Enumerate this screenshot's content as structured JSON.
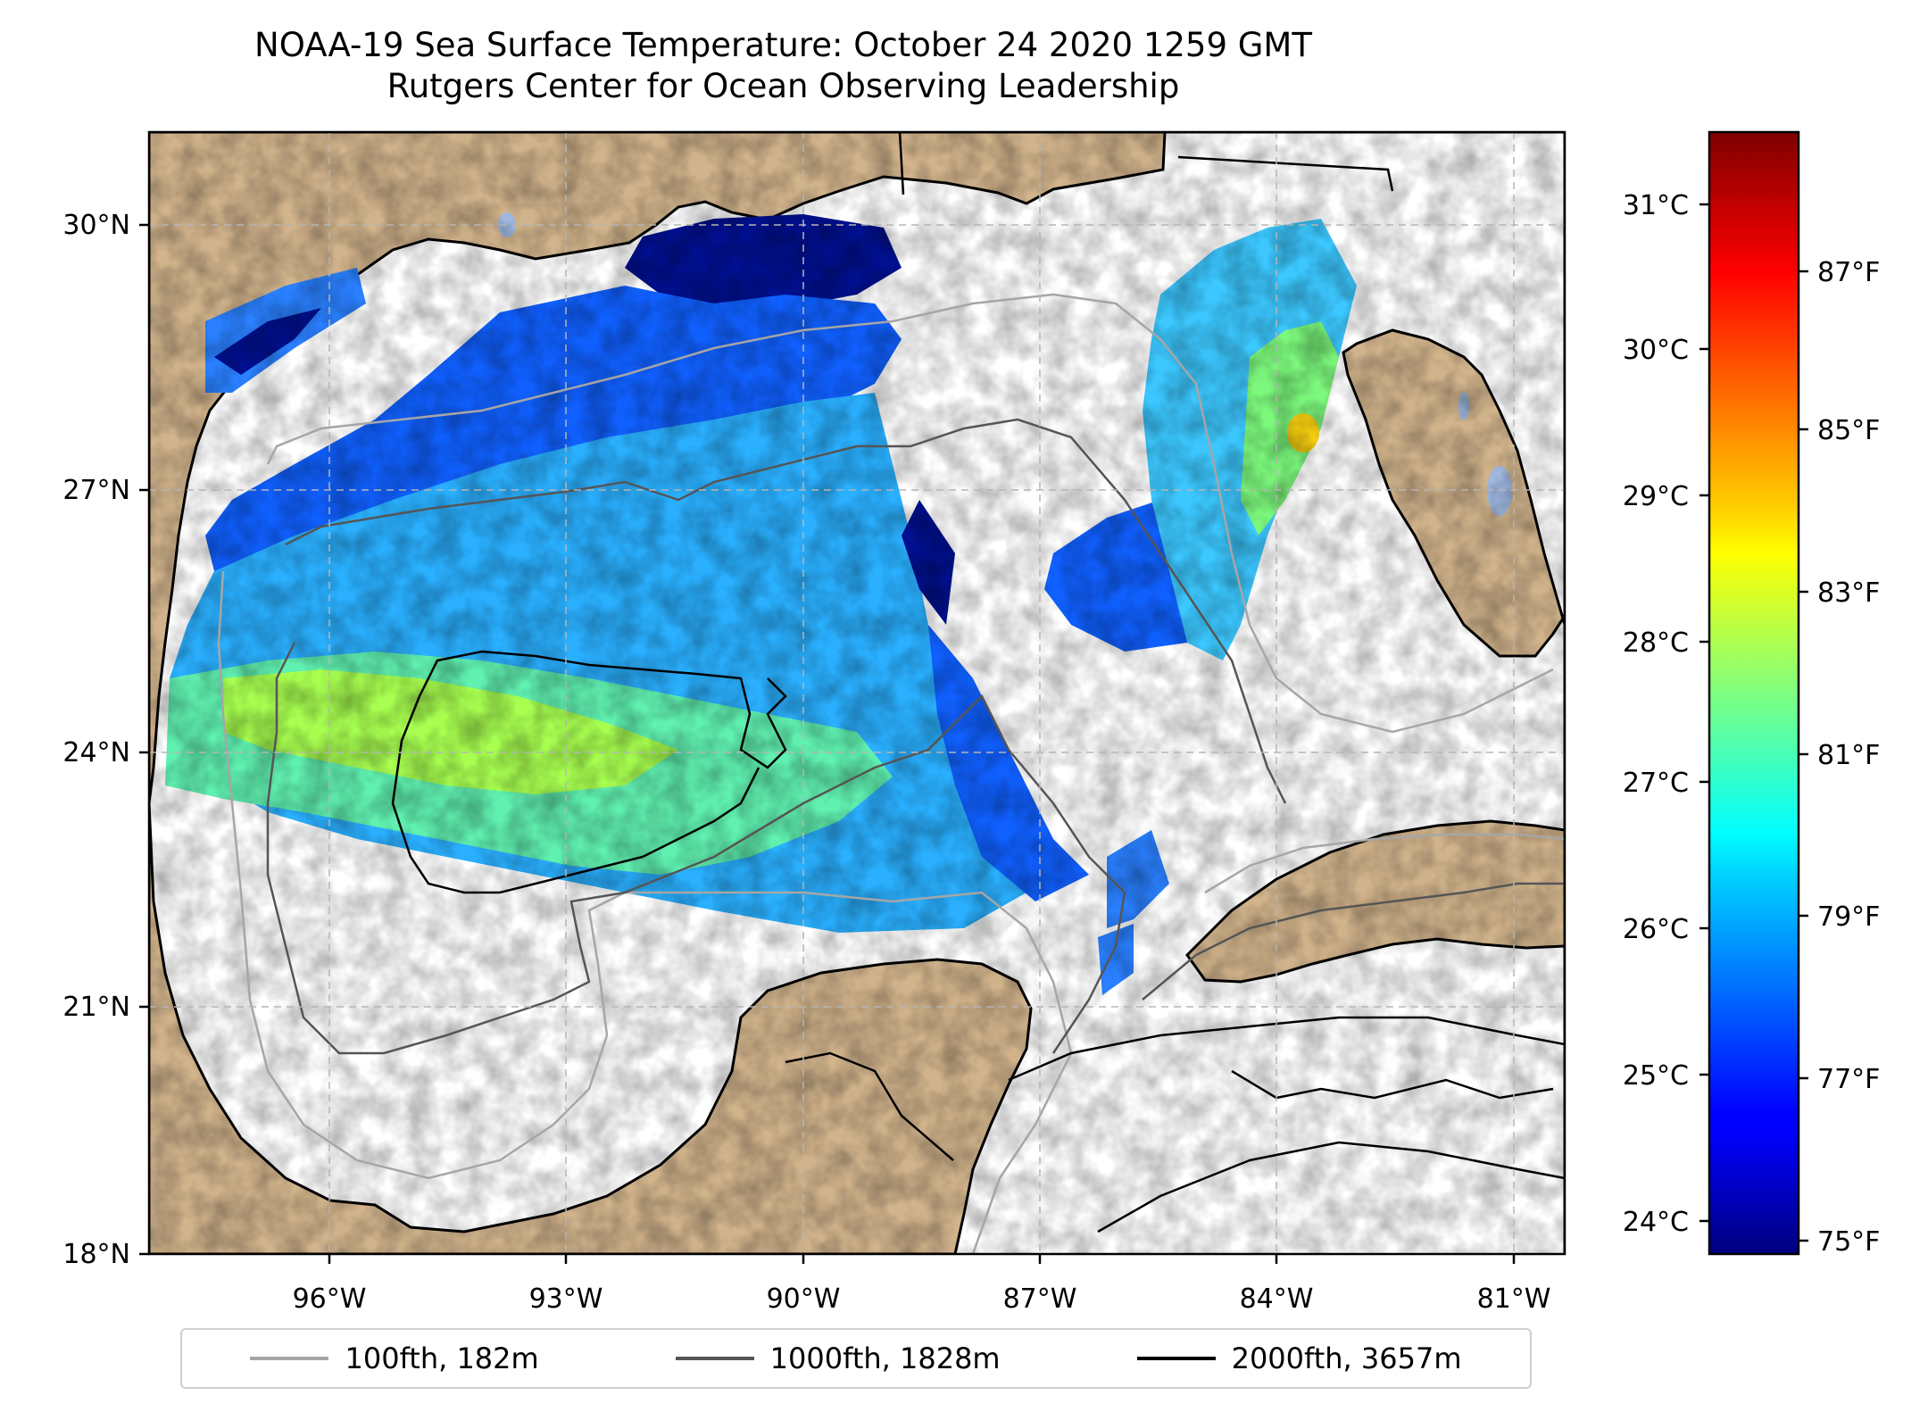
{
  "title": "NOAA-19 Sea Surface Temperature: October 24 2020 1259 GMT",
  "subtitle": "Rutgers Center for Ocean Observing Leadership",
  "map": {
    "lon_range": [
      -98.2,
      -79.6
    ],
    "lat_range": [
      18.0,
      31.0
    ],
    "lon_ticks": [
      "96°W",
      "93°W",
      "90°W",
      "87°W",
      "84°W",
      "81°W"
    ],
    "lat_ticks": [
      "30°N",
      "27°N",
      "24°N",
      "21°N",
      "18°N"
    ],
    "grid": true,
    "land_color": "#d2b48c",
    "ocean_color": "#ffffff",
    "lake_color": "#9fb8e0"
  },
  "colorbar": {
    "colormap": "jet",
    "celsius_ticks": [
      "24°C",
      "25°C",
      "26°C",
      "27°C",
      "28°C",
      "29°C",
      "30°C",
      "31°C"
    ],
    "fahrenheit_ticks": [
      "75°F",
      "77°F",
      "79°F",
      "81°F",
      "83°F",
      "85°F",
      "87°F"
    ],
    "range_f": [
      74.8,
      88.9
    ]
  },
  "legend": {
    "placement": "bottom",
    "items": [
      {
        "label": "100fth, 182m",
        "color": "#a6a6a6"
      },
      {
        "label": "1000fth, 1828m",
        "color": "#555555"
      },
      {
        "label": "2000fth, 3657m",
        "color": "#000000"
      }
    ]
  }
}
